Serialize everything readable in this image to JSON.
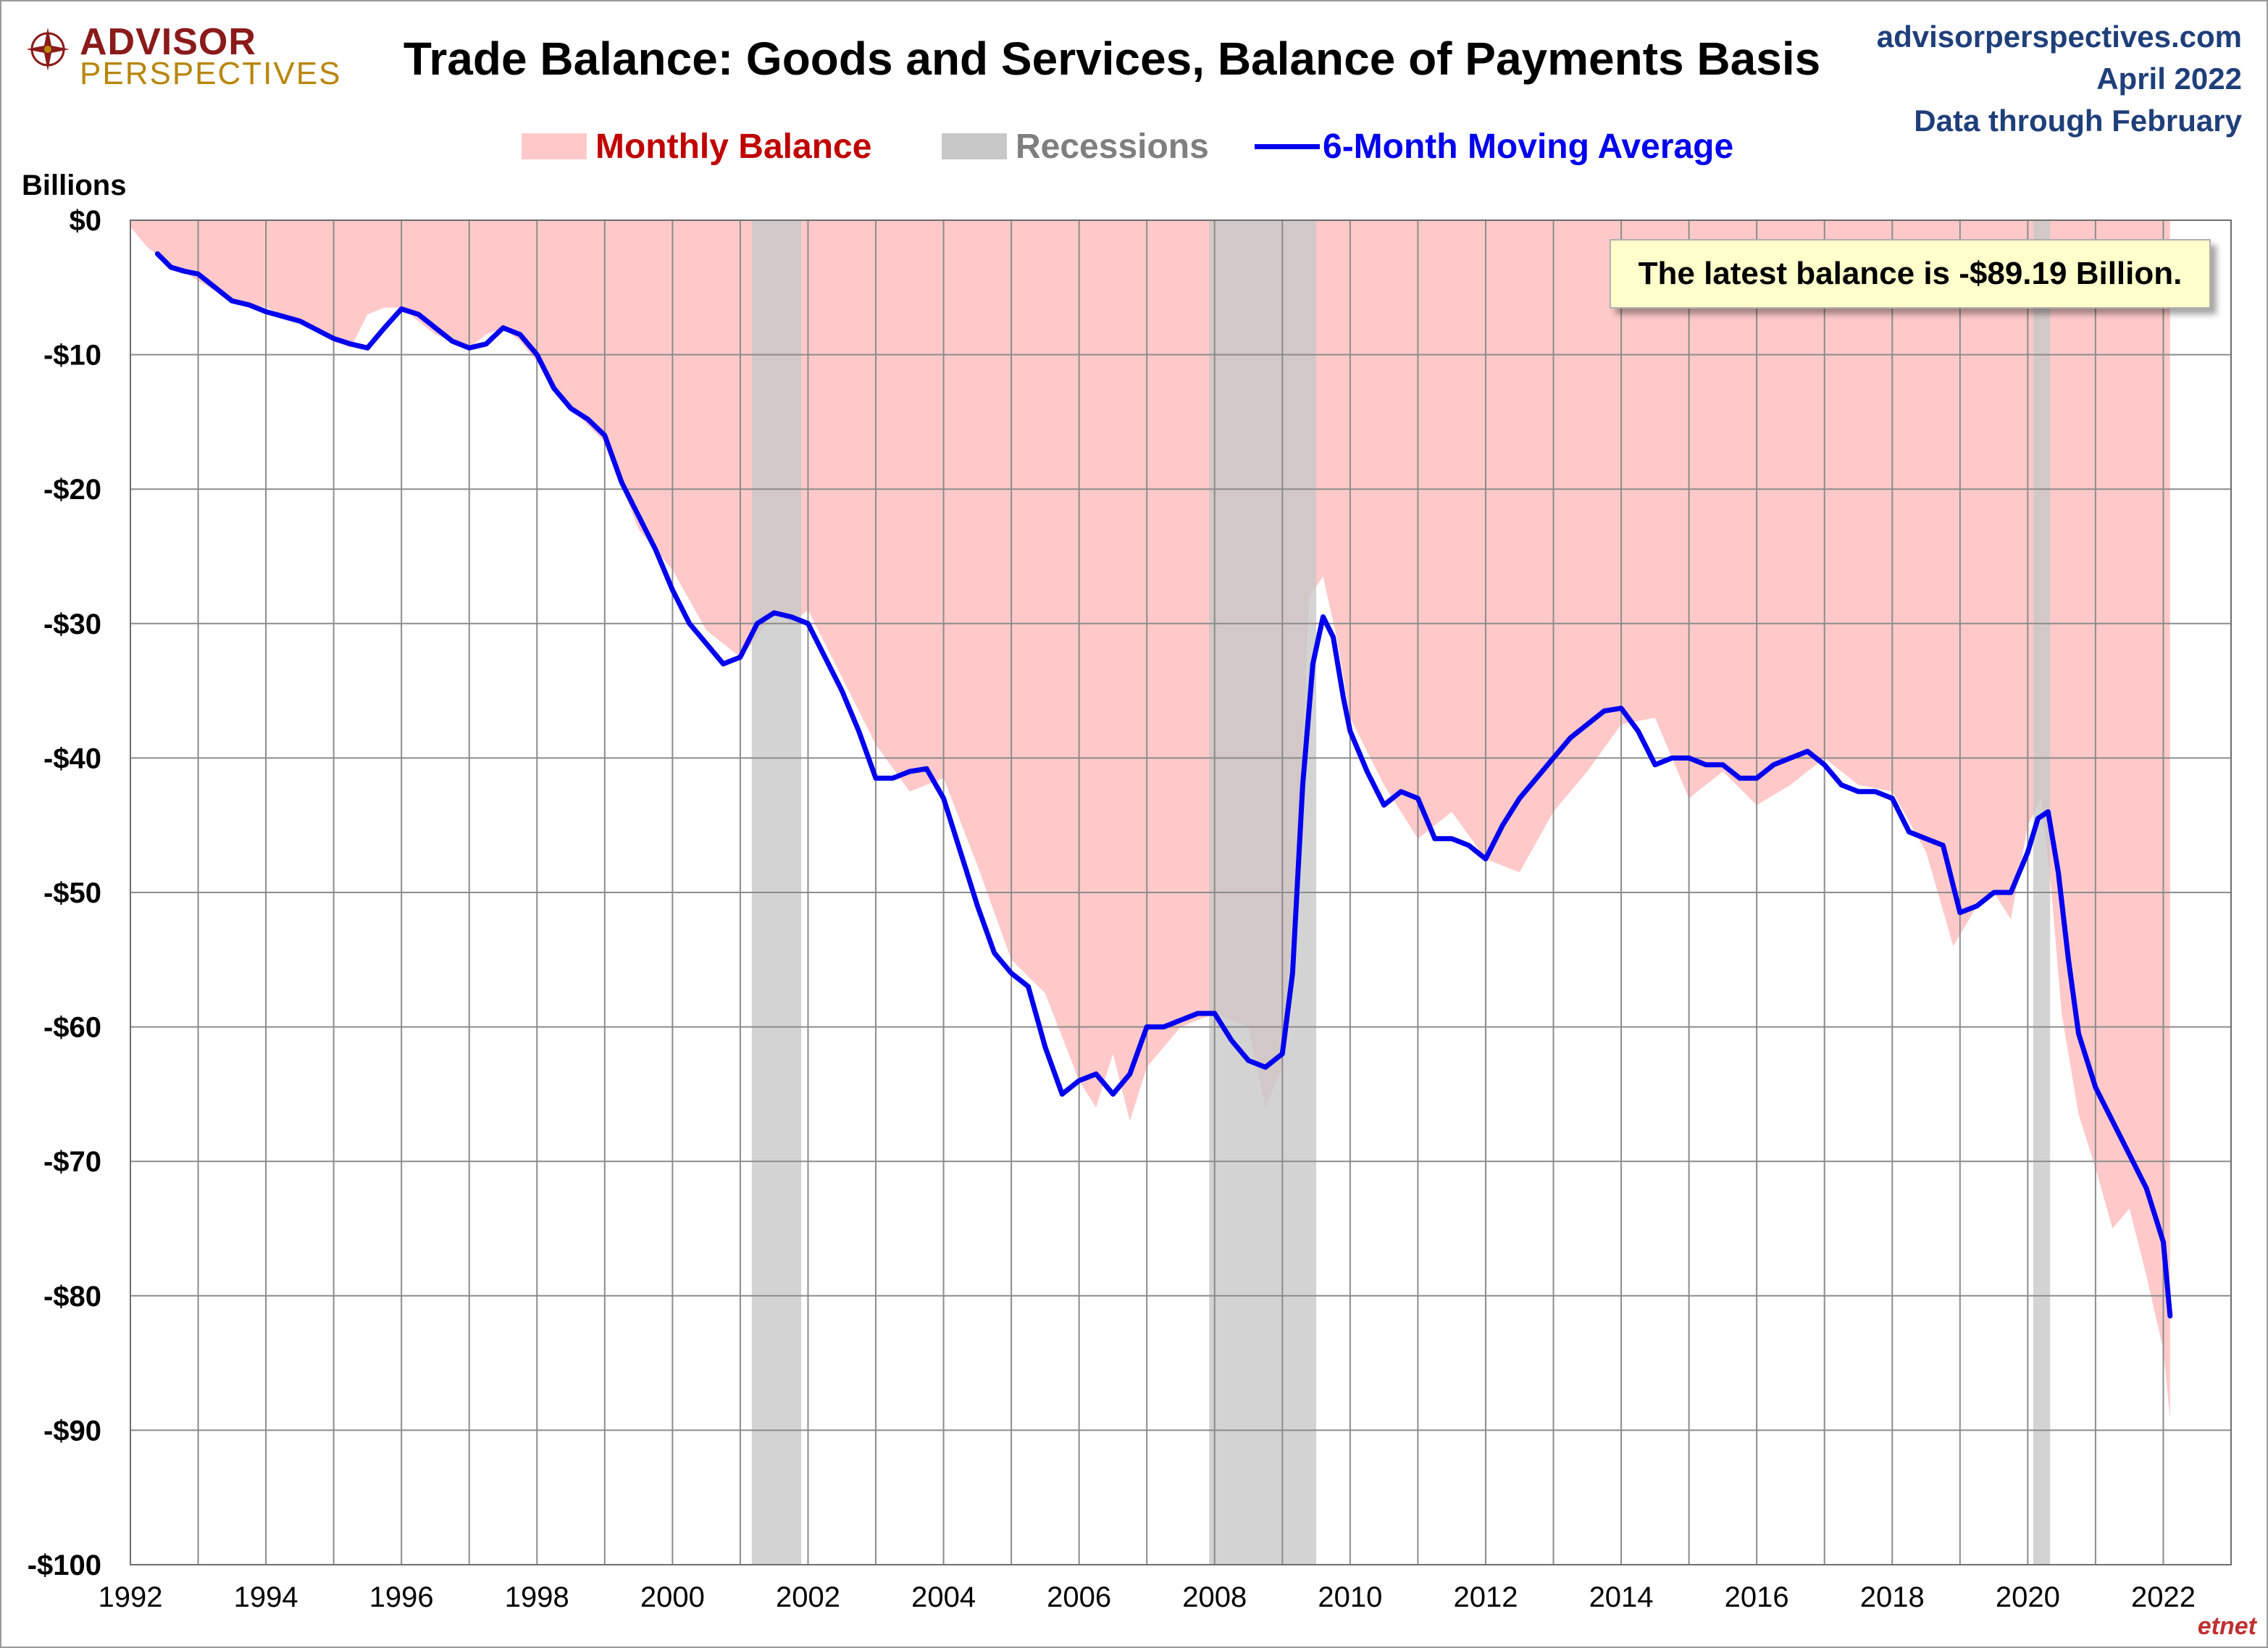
{
  "header": {
    "logo_line1": "ADVISOR",
    "logo_line2": "PERSPECTIVES",
    "title": "Trade Balance: Goods and Services, Balance of Payments Basis",
    "site": "advisorperspectives.com",
    "date": "April 2022",
    "data_through": "Data through February"
  },
  "legend": {
    "monthly": "Monthly Balance",
    "recessions": "Recessions",
    "moving_avg": "6-Month Moving Average"
  },
  "annotation": "The latest balance is -$89.19 Billion.",
  "watermark": "etnet",
  "colors": {
    "monthly_fill": "#ffc9c9",
    "recession_fill": "#c8c8c8",
    "moving_avg_line": "#0000ee",
    "monthly_label": "#c00000",
    "recession_label": "#7f7f7f",
    "moving_avg_label": "#0000ee",
    "grid": "#8c8c8c"
  },
  "chart_data": {
    "type": "area",
    "ylabel": "Billions",
    "xlabel": "",
    "xlim": [
      1992,
      2023
    ],
    "ylim": [
      -100,
      0
    ],
    "x_ticks": [
      "1992",
      "1994",
      "1996",
      "1998",
      "2000",
      "2002",
      "2004",
      "2006",
      "2008",
      "2010",
      "2012",
      "2014",
      "2016",
      "2018",
      "2020",
      "2022"
    ],
    "y_ticks": [
      "$0",
      "-$10",
      "-$20",
      "-$30",
      "-$40",
      "-$50",
      "-$60",
      "-$70",
      "-$80",
      "-$90",
      "-$100"
    ],
    "grid": true,
    "legend_position": "top-center",
    "recessions": [
      [
        2001.17,
        2001.9
      ],
      [
        2007.92,
        2009.5
      ],
      [
        2020.08,
        2020.33
      ]
    ],
    "series": [
      {
        "name": "Monthly Balance",
        "kind": "area",
        "x": [
          1992.0,
          1992.25,
          1992.5,
          1993.0,
          1993.5,
          1994.0,
          1994.5,
          1995.0,
          1995.25,
          1995.5,
          1995.75,
          1996.0,
          1996.5,
          1997.0,
          1997.25,
          1997.5,
          1997.75,
          1998.0,
          1998.5,
          1999.0,
          1999.5,
          2000.0,
          2000.5,
          2001.0,
          2001.25,
          2001.5,
          2001.75,
          2002.0,
          2002.5,
          2003.0,
          2003.5,
          2004.0,
          2004.5,
          2005.0,
          2005.5,
          2006.0,
          2006.25,
          2006.5,
          2006.75,
          2007.0,
          2007.5,
          2008.0,
          2008.25,
          2008.5,
          2008.75,
          2009.0,
          2009.25,
          2009.4,
          2009.6,
          2009.8,
          2010.0,
          2010.5,
          2011.0,
          2011.5,
          2012.0,
          2012.5,
          2013.0,
          2013.5,
          2014.0,
          2014.5,
          2015.0,
          2015.5,
          2016.0,
          2016.5,
          2017.0,
          2017.5,
          2018.0,
          2018.5,
          2018.9,
          2019.25,
          2019.5,
          2019.75,
          2020.0,
          2020.2,
          2020.35,
          2020.5,
          2020.75,
          2021.0,
          2021.25,
          2021.5,
          2021.75,
          2022.0,
          2022.1
        ],
        "values": [
          -0.5,
          -2.0,
          -3.0,
          -4.5,
          -6.0,
          -6.5,
          -7.5,
          -9.0,
          -9.5,
          -7.0,
          -6.5,
          -6.5,
          -8.5,
          -9.5,
          -8.5,
          -8.0,
          -9.0,
          -10.5,
          -14.0,
          -16.5,
          -23.0,
          -26.0,
          -30.5,
          -32.5,
          -31.0,
          -29.0,
          -30.0,
          -29.0,
          -34.0,
          -39.0,
          -42.5,
          -41.5,
          -48.0,
          -55.0,
          -57.5,
          -64.0,
          -66.0,
          -62.0,
          -67.0,
          -63.0,
          -60.0,
          -59.0,
          -59.5,
          -60.0,
          -66.0,
          -63.0,
          -44.0,
          -28.0,
          -26.5,
          -31.0,
          -37.0,
          -42.0,
          -46.0,
          -44.0,
          -47.5,
          -48.5,
          -44.0,
          -41.0,
          -37.5,
          -37.0,
          -43.0,
          -41.0,
          -43.5,
          -42.0,
          -40.0,
          -42.0,
          -42.5,
          -47.0,
          -54.0,
          -51.0,
          -50.0,
          -52.0,
          -45.0,
          -43.0,
          -50.0,
          -59.0,
          -66.5,
          -70.5,
          -75.0,
          -73.5,
          -78.5,
          -84.0,
          -89.19
        ]
      },
      {
        "name": "6-Month Moving Average",
        "kind": "line",
        "x": [
          1992.4,
          1992.6,
          1992.8,
          1993.0,
          1993.25,
          1993.5,
          1993.75,
          1994.0,
          1994.5,
          1995.0,
          1995.25,
          1995.5,
          1995.75,
          1996.0,
          1996.25,
          1996.5,
          1996.75,
          1997.0,
          1997.25,
          1997.5,
          1997.75,
          1998.0,
          1998.25,
          1998.5,
          1998.75,
          1999.0,
          1999.25,
          1999.5,
          1999.75,
          2000.0,
          2000.25,
          2000.5,
          2000.75,
          2001.0,
          2001.25,
          2001.5,
          2001.75,
          2002.0,
          2002.25,
          2002.5,
          2002.75,
          2003.0,
          2003.25,
          2003.5,
          2003.75,
          2004.0,
          2004.25,
          2004.5,
          2004.75,
          2005.0,
          2005.25,
          2005.5,
          2005.75,
          2006.0,
          2006.25,
          2006.5,
          2006.75,
          2007.0,
          2007.25,
          2007.5,
          2007.75,
          2008.0,
          2008.25,
          2008.5,
          2008.75,
          2009.0,
          2009.15,
          2009.3,
          2009.45,
          2009.6,
          2009.75,
          2009.9,
          2010.0,
          2010.25,
          2010.5,
          2010.75,
          2011.0,
          2011.25,
          2011.5,
          2011.75,
          2012.0,
          2012.25,
          2012.5,
          2012.75,
          2013.0,
          2013.25,
          2013.5,
          2013.75,
          2014.0,
          2014.25,
          2014.5,
          2014.75,
          2015.0,
          2015.25,
          2015.5,
          2015.75,
          2016.0,
          2016.25,
          2016.5,
          2016.75,
          2017.0,
          2017.25,
          2017.5,
          2017.75,
          2018.0,
          2018.25,
          2018.5,
          2018.75,
          2019.0,
          2019.25,
          2019.5,
          2019.75,
          2020.0,
          2020.15,
          2020.3,
          2020.45,
          2020.6,
          2020.75,
          2021.0,
          2021.25,
          2021.5,
          2021.75,
          2022.0,
          2022.1
        ],
        "values": [
          -2.5,
          -3.5,
          -3.8,
          -4.0,
          -5.0,
          -6.0,
          -6.3,
          -6.8,
          -7.5,
          -8.8,
          -9.2,
          -9.5,
          -8.0,
          -6.6,
          -7.0,
          -8.0,
          -9.0,
          -9.5,
          -9.2,
          -8.0,
          -8.5,
          -10.0,
          -12.5,
          -14.0,
          -14.8,
          -16.0,
          -19.5,
          -22.0,
          -24.5,
          -27.5,
          -30.0,
          -31.5,
          -33.0,
          -32.5,
          -30.0,
          -29.2,
          -29.5,
          -30.0,
          -32.5,
          -35.0,
          -38.0,
          -41.5,
          -41.5,
          -41.0,
          -40.8,
          -43.0,
          -47.0,
          -51.0,
          -54.5,
          -56.0,
          -57.0,
          -61.5,
          -65.0,
          -64.0,
          -63.5,
          -65.0,
          -63.5,
          -60.0,
          -60.0,
          -59.5,
          -59.0,
          -59.0,
          -61.0,
          -62.5,
          -63.0,
          -62.0,
          -56.0,
          -42.0,
          -33.0,
          -29.5,
          -31.0,
          -35.5,
          -38.0,
          -41.0,
          -43.5,
          -42.5,
          -43.0,
          -46.0,
          -46.0,
          -46.5,
          -47.5,
          -45.0,
          -43.0,
          -41.5,
          -40.0,
          -38.5,
          -37.5,
          -36.5,
          -36.3,
          -38.0,
          -40.5,
          -40.0,
          -40.0,
          -40.5,
          -40.5,
          -41.5,
          -41.5,
          -40.5,
          -40.0,
          -39.5,
          -40.5,
          -42.0,
          -42.5,
          -42.5,
          -43.0,
          -45.5,
          -46.0,
          -46.5,
          -51.5,
          -51.0,
          -50.0,
          -50.0,
          -47.0,
          -44.5,
          -44.0,
          -48.5,
          -55.0,
          -60.5,
          -64.5,
          -67.0,
          -69.5,
          -72.0,
          -76.0,
          -81.5
        ]
      }
    ]
  }
}
